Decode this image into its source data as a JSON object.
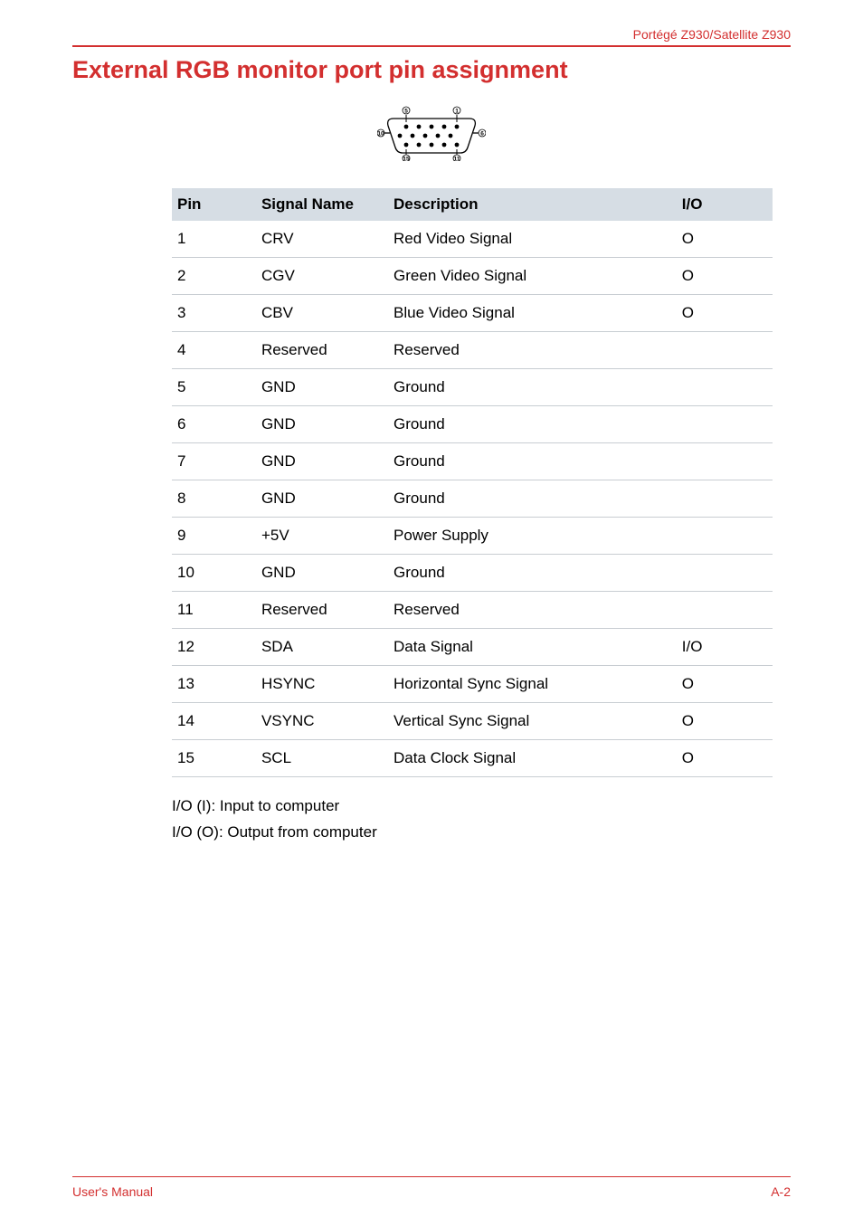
{
  "header": {
    "product": "Portégé Z930/Satellite Z930"
  },
  "title": "External RGB monitor port pin assignment",
  "diagram": {
    "pin_labels": [
      "5",
      "1",
      "10",
      "6",
      "15",
      "11"
    ],
    "dot_color": "#000000",
    "label_fontsize": 7
  },
  "table": {
    "header_bg": "#d6dde4",
    "border_color": "#c8cdd2",
    "columns": [
      "Pin",
      "Signal Name",
      "Description",
      "I/O"
    ],
    "rows": [
      {
        "pin": "1",
        "signal": "CRV",
        "desc": "Red Video Signal",
        "io": "O"
      },
      {
        "pin": "2",
        "signal": "CGV",
        "desc": "Green Video Signal",
        "io": "O"
      },
      {
        "pin": "3",
        "signal": "CBV",
        "desc": "Blue Video Signal",
        "io": "O"
      },
      {
        "pin": "4",
        "signal": "Reserved",
        "desc": "Reserved",
        "io": ""
      },
      {
        "pin": "5",
        "signal": "GND",
        "desc": "Ground",
        "io": ""
      },
      {
        "pin": "6",
        "signal": "GND",
        "desc": "Ground",
        "io": ""
      },
      {
        "pin": "7",
        "signal": "GND",
        "desc": "Ground",
        "io": ""
      },
      {
        "pin": "8",
        "signal": "GND",
        "desc": "Ground",
        "io": ""
      },
      {
        "pin": "9",
        "signal": "+5V",
        "desc": "Power Supply",
        "io": ""
      },
      {
        "pin": "10",
        "signal": "GND",
        "desc": "Ground",
        "io": ""
      },
      {
        "pin": "11",
        "signal": "Reserved",
        "desc": "Reserved",
        "io": ""
      },
      {
        "pin": "12",
        "signal": "SDA",
        "desc": "Data Signal",
        "io": "I/O"
      },
      {
        "pin": "13",
        "signal": "HSYNC",
        "desc": "Horizontal Sync Signal",
        "io": "O"
      },
      {
        "pin": "14",
        "signal": "VSYNC",
        "desc": "Vertical Sync Signal",
        "io": "O"
      },
      {
        "pin": "15",
        "signal": "SCL",
        "desc": "Data Clock Signal",
        "io": "O"
      }
    ]
  },
  "notes": {
    "line1": "I/O (I): Input to computer",
    "line2": "I/O (O): Output from computer"
  },
  "footer": {
    "left": "User's Manual",
    "right": "A-2"
  },
  "colors": {
    "brand_red": "#d32f2f",
    "text": "#000000",
    "bg": "#ffffff"
  },
  "fonts": {
    "body_size": 17,
    "title_size": 27,
    "header_size": 14,
    "footer_size": 14
  }
}
